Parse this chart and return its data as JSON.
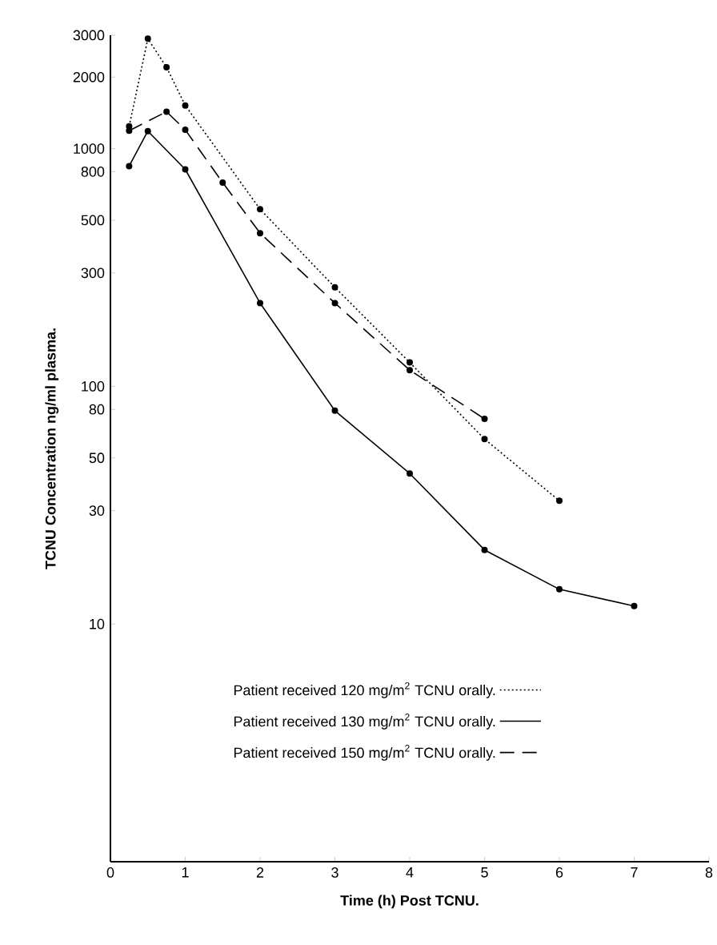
{
  "chart_data": {
    "type": "line",
    "xlabel": "Time (h) Post TCNU.",
    "ylabel": "TCNU Concentration ng/ml plasma.",
    "log": "y",
    "xlim": [
      0,
      8
    ],
    "ylim": [
      1,
      3000
    ],
    "xticks": [
      0,
      1,
      2,
      3,
      4,
      5,
      6,
      7,
      8
    ],
    "yticks": [
      10,
      30,
      50,
      80,
      100,
      300,
      500,
      800,
      1000,
      2000,
      3000
    ],
    "marker": "circle",
    "legend": "bottom",
    "grid": false,
    "series": [
      {
        "name": "Patient received 120 mg/m$^{2}$ TCNU orally.",
        "color": "#000000",
        "line_style": "dotted",
        "x": [
          0.25,
          0.5,
          0.75,
          1,
          2,
          3,
          4,
          5,
          6
        ],
        "values": [
          1240,
          2900,
          2200,
          1520,
          556,
          261,
          126,
          60,
          33
        ]
      },
      {
        "name": "Patient received 130 mg/m$^{2}$ TCNU orally.",
        "color": "#000000",
        "line_style": "solid",
        "x": [
          0.25,
          0.5,
          1,
          2,
          3,
          4,
          5,
          6,
          7
        ],
        "values": [
          844,
          1185,
          818,
          224,
          79,
          43,
          20.5,
          14,
          11.9
        ]
      },
      {
        "name": "Patient received 150 mg/m$^{2}$ TCNU orally.",
        "color": "#000000",
        "line_style": "dashed",
        "x": [
          0.25,
          0.75,
          1,
          1.5,
          2,
          3,
          4,
          5
        ],
        "values": [
          1190,
          1430,
          1200,
          720,
          441,
          224,
          117,
          73
        ]
      }
    ]
  }
}
